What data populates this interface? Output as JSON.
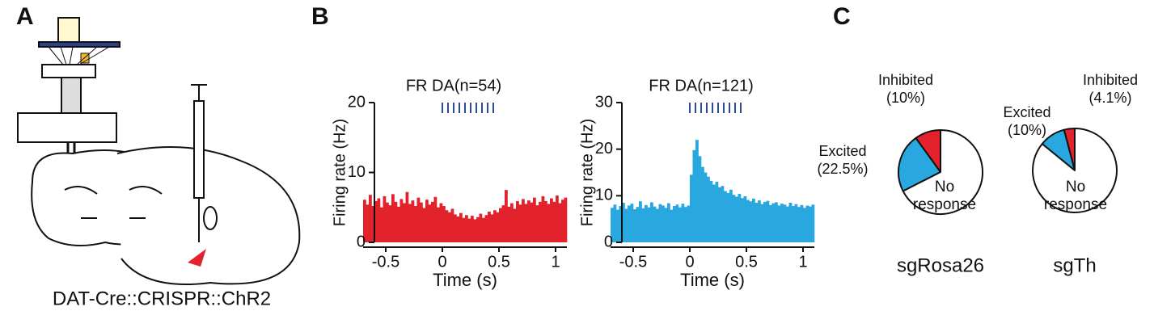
{
  "panel_labels": [
    "A",
    "B",
    "C"
  ],
  "diagram": {
    "caption": "DAT-Cre::CRISPR::ChR2"
  },
  "chart_data": [
    {
      "type": "histogram",
      "title": "FR DA(n=54)",
      "xlabel": "Time (s)",
      "ylabel": "Firing rate (Hz)",
      "color": "#e3232c",
      "bins": [
        -0.7,
        -0.675,
        -0.65,
        -0.625,
        -0.6,
        -0.575,
        -0.55,
        -0.525,
        -0.5,
        -0.475,
        -0.45,
        -0.425,
        -0.4,
        -0.375,
        -0.35,
        -0.325,
        -0.3,
        -0.275,
        -0.25,
        -0.225,
        -0.2,
        -0.175,
        -0.15,
        -0.125,
        -0.1,
        -0.075,
        -0.05,
        -0.025,
        0,
        0.025,
        0.05,
        0.075,
        0.1,
        0.125,
        0.15,
        0.175,
        0.2,
        0.225,
        0.25,
        0.275,
        0.3,
        0.325,
        0.35,
        0.375,
        0.4,
        0.425,
        0.45,
        0.475,
        0.5,
        0.525,
        0.55,
        0.575,
        0.6,
        0.625,
        0.65,
        0.675,
        0.7,
        0.725,
        0.75,
        0.775,
        0.8,
        0.825,
        0.85,
        0.875,
        0.9,
        0.925,
        0.95,
        0.975,
        1,
        1.025,
        1.05,
        1.075,
        1.1
      ],
      "values": [
        6.1,
        5.4,
        6.8,
        5.2,
        5.9,
        6.3,
        5.0,
        6.6,
        5.7,
        5.3,
        6.9,
        5.8,
        5.1,
        6.2,
        5.6,
        7.2,
        5.5,
        6.0,
        5.2,
        6.4,
        5.7,
        4.9,
        6.1,
        5.4,
        5.8,
        6.5,
        5.0,
        5.6,
        5.2,
        4.6,
        4.3,
        4.8,
        4.0,
        3.7,
        4.2,
        3.5,
        3.9,
        3.4,
        3.8,
        3.3,
        3.6,
        4.1,
        3.5,
        3.9,
        4.4,
        4.0,
        4.6,
        4.3,
        4.9,
        5.3,
        7.5,
        5.1,
        5.6,
        4.8,
        5.9,
        5.4,
        6.2,
        5.5,
        6.0,
        5.7,
        6.4,
        5.3,
        5.8,
        6.6,
        5.9,
        5.5,
        6.3,
        5.8,
        6.7,
        5.6,
        6.1,
        6.4
      ],
      "xlim": [
        -0.7,
        1.1
      ],
      "xticks": [
        -0.5,
        0,
        0.5,
        1
      ],
      "ylim": [
        0,
        20
      ],
      "yticks": [
        0,
        10,
        20
      ],
      "stim_times": [
        0,
        0.05,
        0.1,
        0.15,
        0.2,
        0.25,
        0.3,
        0.35,
        0.4,
        0.45
      ],
      "stim_color": "#2b4c9a"
    },
    {
      "type": "histogram",
      "title": "FR DA(n=121)",
      "xlabel": "Time (s)",
      "ylabel": "Firing rate (Hz)",
      "color": "#29a8e0",
      "bins": [
        -0.7,
        -0.675,
        -0.65,
        -0.625,
        -0.6,
        -0.575,
        -0.55,
        -0.525,
        -0.5,
        -0.475,
        -0.45,
        -0.425,
        -0.4,
        -0.375,
        -0.35,
        -0.325,
        -0.3,
        -0.275,
        -0.25,
        -0.225,
        -0.2,
        -0.175,
        -0.15,
        -0.125,
        -0.1,
        -0.075,
        -0.05,
        -0.025,
        0,
        0.025,
        0.05,
        0.075,
        0.1,
        0.125,
        0.15,
        0.175,
        0.2,
        0.225,
        0.25,
        0.275,
        0.3,
        0.325,
        0.35,
        0.375,
        0.4,
        0.425,
        0.45,
        0.475,
        0.5,
        0.525,
        0.55,
        0.575,
        0.6,
        0.625,
        0.65,
        0.675,
        0.7,
        0.725,
        0.75,
        0.775,
        0.8,
        0.825,
        0.85,
        0.875,
        0.9,
        0.925,
        0.95,
        0.975,
        1,
        1.025,
        1.05,
        1.075,
        1.1
      ],
      "values": [
        7.4,
        8.1,
        7.0,
        7.8,
        8.5,
        7.2,
        7.9,
        8.3,
        7.1,
        7.6,
        8.8,
        7.3,
        8.0,
        7.5,
        8.6,
        7.7,
        7.2,
        8.2,
        7.9,
        7.4,
        8.4,
        7.0,
        7.8,
        8.1,
        7.5,
        8.3,
        7.6,
        7.9,
        14.5,
        19.8,
        22.0,
        18.5,
        16.2,
        15.0,
        14.1,
        13.2,
        12.4,
        13.0,
        11.8,
        12.1,
        11.0,
        10.6,
        11.3,
        10.2,
        9.8,
        10.4,
        9.5,
        9.9,
        9.1,
        8.8,
        9.4,
        8.5,
        9.0,
        8.2,
        8.7,
        8.9,
        8.0,
        8.4,
        8.6,
        7.9,
        8.3,
        8.1,
        7.7,
        8.5,
        7.8,
        8.2,
        7.6,
        8.0,
        7.4,
        7.9,
        7.7,
        8.1
      ],
      "xlim": [
        -0.7,
        1.1
      ],
      "xticks": [
        -0.5,
        0,
        0.5,
        1
      ],
      "ylim": [
        0,
        30
      ],
      "yticks": [
        0,
        10,
        20,
        30
      ],
      "stim_times": [
        0,
        0.05,
        0.1,
        0.15,
        0.2,
        0.25,
        0.3,
        0.35,
        0.4,
        0.45
      ],
      "stim_color": "#2b4c9a"
    },
    {
      "type": "pie",
      "title": "sgRosa26",
      "categories": [
        "Inhibited",
        "Excited",
        "No response"
      ],
      "values": [
        10,
        22.5,
        67.5
      ],
      "value_labels": [
        "(10%)",
        "(22.5%)",
        null
      ],
      "colors": [
        "#e3232c",
        "#29a8e0",
        "#ffffff"
      ]
    },
    {
      "type": "pie",
      "title": "sgTh",
      "categories": [
        "Inhibited",
        "Excited",
        "No response"
      ],
      "values": [
        4.1,
        10,
        85.9
      ],
      "value_labels": [
        "(4.1%)",
        "(10%)",
        null
      ],
      "colors": [
        "#e3232c",
        "#29a8e0",
        "#ffffff"
      ]
    }
  ]
}
